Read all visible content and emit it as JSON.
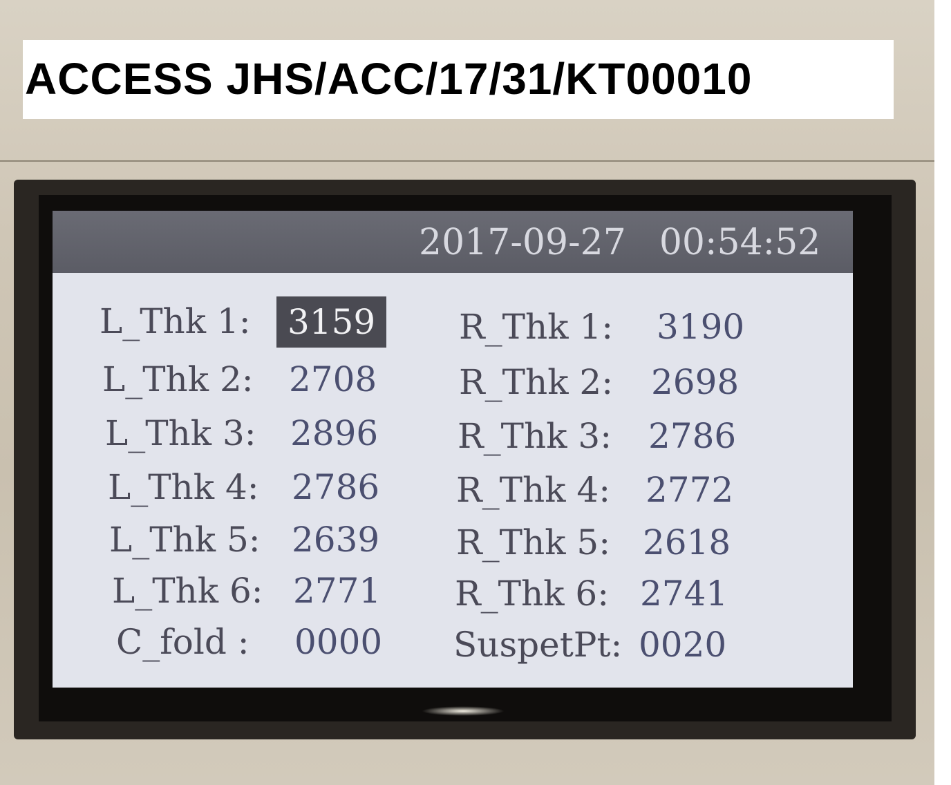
{
  "caption": {
    "text": "ACCESS JHS/ACC/17/31/KT00010"
  },
  "screen": {
    "date": "2017-09-27",
    "time": "00:54:52",
    "left": [
      {
        "label": "L_Thk 1:",
        "value": "3159",
        "selected": true
      },
      {
        "label": "L_Thk 2:",
        "value": "2708"
      },
      {
        "label": "L_Thk 3:",
        "value": "2896"
      },
      {
        "label": "L_Thk 4:",
        "value": "2786"
      },
      {
        "label": "L_Thk 5:",
        "value": "2639"
      },
      {
        "label": "L_Thk 6:",
        "value": "2771"
      },
      {
        "label": "C_fold :",
        "value": "0000"
      }
    ],
    "right": [
      {
        "label": "R_Thk 1:",
        "value": "3190"
      },
      {
        "label": "R_Thk 2:",
        "value": "2698"
      },
      {
        "label": "R_Thk 3:",
        "value": "2786"
      },
      {
        "label": "R_Thk 4:",
        "value": "2772"
      },
      {
        "label": "R_Thk 5:",
        "value": "2618"
      },
      {
        "label": "R_Thk 6:",
        "value": "2741"
      },
      {
        "label": "SuspetPt:",
        "value": "0020"
      }
    ]
  }
}
